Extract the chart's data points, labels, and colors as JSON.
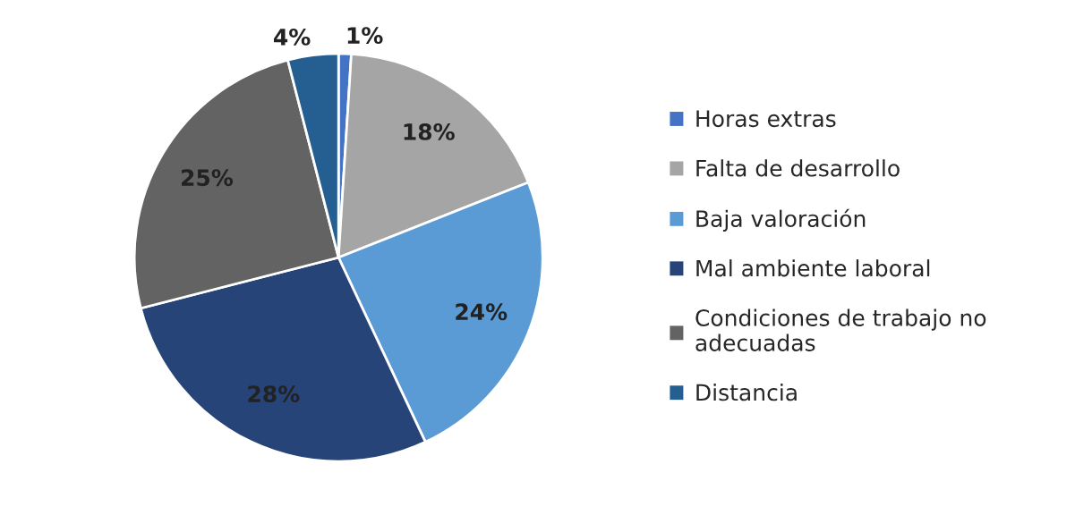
{
  "chart_data": {
    "type": "pie",
    "categories": [
      "Horas extras",
      "Falta de desarrollo",
      "Baja valoración",
      "Mal ambiente laboral",
      "Condiciones de trabajo no adecuadas",
      "Distancia"
    ],
    "values": [
      1,
      18,
      24,
      28,
      25,
      4
    ],
    "colors": [
      "#4472c4",
      "#a5a5a5",
      "#5b9bd5",
      "#264478",
      "#636363",
      "#255e91"
    ],
    "value_labels": [
      "1%",
      "18%",
      "24%",
      "28%",
      "25%",
      "4%"
    ],
    "legend": "right"
  }
}
